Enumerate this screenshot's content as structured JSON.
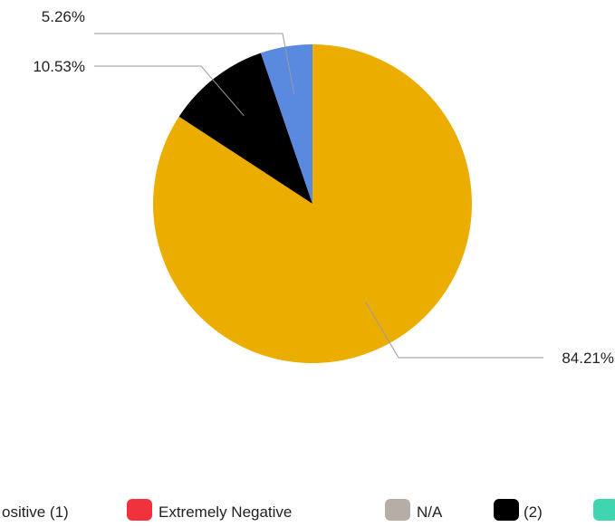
{
  "chart_data": {
    "type": "pie",
    "start": "12 o'clock, clockwise",
    "slices": [
      {
        "label": "84.21%",
        "value": 84.21,
        "color": "#EBAD00"
      },
      {
        "label": "10.53%",
        "value": 10.53,
        "color": "#000000"
      },
      {
        "label": "5.26%",
        "value": 5.26,
        "color": "#5A8AE0"
      }
    ],
    "legend": {
      "placement": "bottom",
      "entries": [
        {
          "label": "ositive (1)",
          "color": null
        },
        {
          "label": "Extremely Negative",
          "color": "#F0323C"
        },
        {
          "label": "N/A",
          "color": "#B7ADA7"
        },
        {
          "label": "(2)",
          "color": "#000000"
        },
        {
          "label": "",
          "color": "#3FD5B0"
        }
      ]
    }
  }
}
